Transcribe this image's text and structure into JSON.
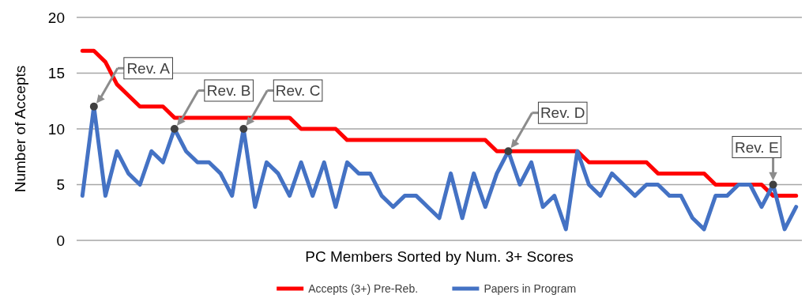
{
  "chart_data": {
    "type": "line",
    "ylabel": "Number of Accepts",
    "xlabel": "PC Members Sorted by Num. 3+ Scores",
    "categories": [
      null,
      null,
      null,
      null,
      null,
      null,
      null,
      null,
      null,
      null,
      null,
      null,
      null,
      null,
      null,
      null,
      null,
      null,
      null,
      null,
      null,
      null,
      null,
      null,
      null,
      null,
      null,
      null,
      null,
      null,
      null,
      null,
      null,
      null,
      null,
      null,
      null,
      null,
      null,
      null,
      null,
      null,
      null,
      null,
      null,
      null,
      null,
      null,
      null,
      null,
      null,
      null,
      null,
      null,
      null,
      null,
      null,
      null,
      null,
      null,
      null,
      null,
      null
    ],
    "series": [
      {
        "name": "Accepts (3+) Pre-Reb.",
        "color": "#ff0000",
        "values": [
          17,
          17,
          16,
          14,
          13,
          12,
          12,
          12,
          11,
          11,
          11,
          11,
          11,
          11,
          11,
          11,
          11,
          11,
          11,
          10,
          10,
          10,
          10,
          9,
          9,
          9,
          9,
          9,
          9,
          9,
          9,
          9,
          9,
          9,
          9,
          9,
          8,
          8,
          8,
          8,
          8,
          8,
          8,
          8,
          7,
          7,
          7,
          7,
          7,
          7,
          6,
          6,
          6,
          6,
          6,
          5,
          5,
          5,
          5,
          5,
          4,
          4,
          4
        ]
      },
      {
        "name": "Papers in Program",
        "color": "#4472c4",
        "values": [
          4,
          12,
          4,
          8,
          6,
          5,
          8,
          7,
          10,
          8,
          7,
          7,
          6,
          4,
          10,
          3,
          7,
          6,
          4,
          7,
          4,
          7,
          3,
          7,
          6,
          6,
          4,
          3,
          4,
          4,
          3,
          2,
          6,
          2,
          6,
          3,
          6,
          8,
          5,
          7,
          3,
          4,
          1,
          8,
          5,
          4,
          6,
          5,
          4,
          5,
          5,
          4,
          4,
          2,
          1,
          4,
          4,
          5,
          5,
          3,
          5,
          1,
          3
        ]
      }
    ],
    "ylim": [
      0,
      20
    ],
    "yticks": [
      0,
      5,
      10,
      15,
      20
    ],
    "grid": "y",
    "legend": "bottom",
    "annotations": [
      {
        "text": "Rev. A",
        "y": 12
      },
      "Rev. B",
      {
        "text": "Rev. C",
        "y": 10
      },
      {
        "text": "Rev. D",
        "y": 8
      },
      {
        "text": "Rev. E",
        "y": 5
      }
    ]
  }
}
